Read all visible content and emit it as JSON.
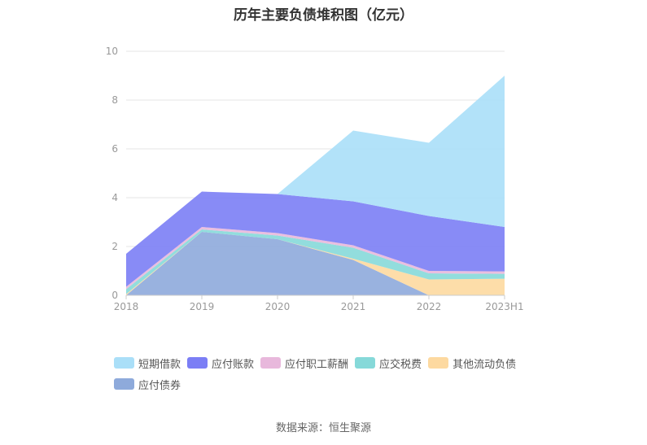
{
  "title": "历年主要负债堆积图（亿元）",
  "source": "数据来源：恒生聚源",
  "chart_data": {
    "type": "area",
    "stacked": true,
    "categories": [
      "2018",
      "2019",
      "2020",
      "2021",
      "2022",
      "2023H1"
    ],
    "ylim": [
      0,
      10
    ],
    "yticks": [
      0,
      2,
      4,
      6,
      8,
      10
    ],
    "grid": true,
    "legend_position": "bottom",
    "series": [
      {
        "name": "应付债券",
        "color": "#8eaadb",
        "values": [
          0.0,
          2.6,
          2.3,
          1.45,
          0.0,
          0.0
        ]
      },
      {
        "name": "其他流动负债",
        "color": "#fdd9a0",
        "values": [
          0.05,
          0.0,
          0.0,
          0.05,
          0.65,
          0.68
        ]
      },
      {
        "name": "应交税费",
        "color": "#86d9d9",
        "values": [
          0.2,
          0.1,
          0.15,
          0.45,
          0.25,
          0.2
        ]
      },
      {
        "name": "应付职工薪酬",
        "color": "#e8b8dc",
        "values": [
          0.1,
          0.1,
          0.1,
          0.1,
          0.1,
          0.1
        ]
      },
      {
        "name": "应付账款",
        "color": "#7b7ef5",
        "values": [
          1.35,
          1.45,
          1.6,
          1.8,
          2.25,
          1.82
        ]
      },
      {
        "name": "短期借款",
        "color": "#aadff8",
        "values": [
          0.0,
          0.0,
          0.0,
          2.9,
          3.0,
          6.2
        ]
      }
    ]
  }
}
